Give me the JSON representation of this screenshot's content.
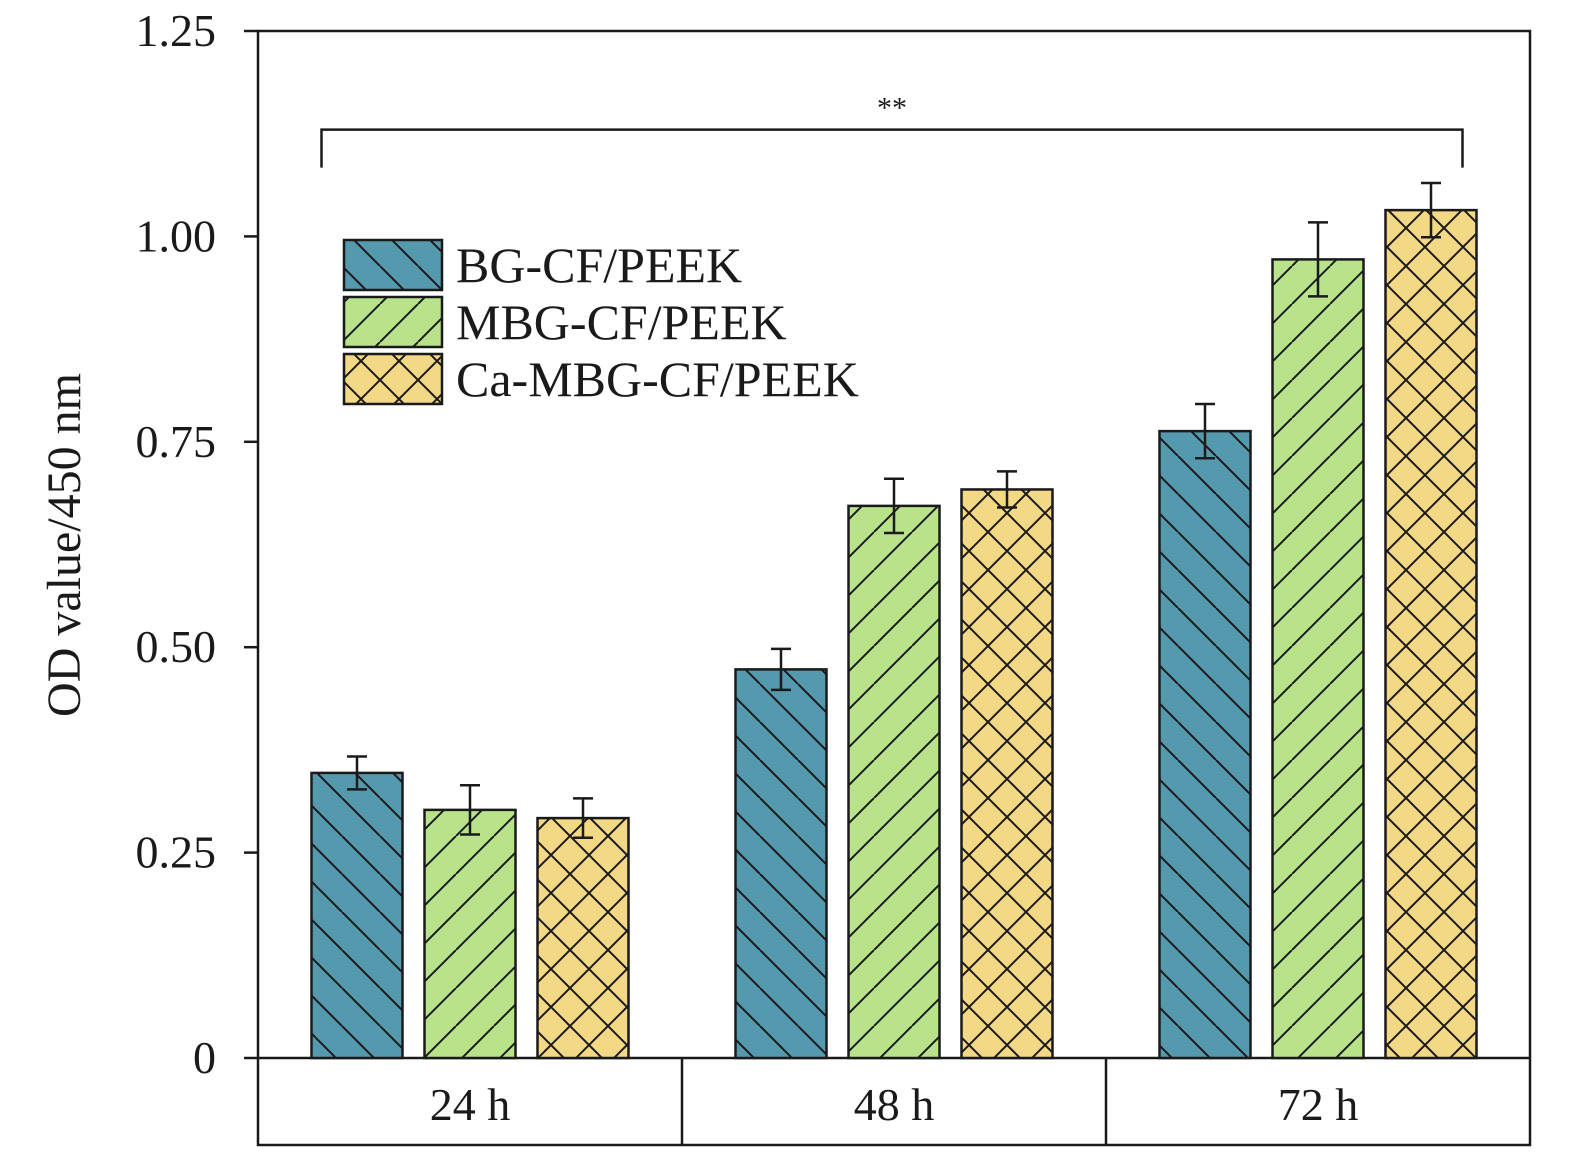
{
  "chart_data": {
    "type": "bar",
    "categories": [
      "24 h",
      "48 h",
      "72 h"
    ],
    "ylabel": "OD value/450 nm",
    "xlabel": "",
    "ylim": [
      0,
      1.25
    ],
    "yticks": [
      "0",
      "0.25",
      "0.50",
      "0.75",
      "1.00",
      "1.25"
    ],
    "ytick_values": [
      0,
      0.25,
      0.5,
      0.75,
      1.0,
      1.25
    ],
    "grid": false,
    "legend_position": "upper-left",
    "series": [
      {
        "name": "BG-CF/PEEK",
        "color": "#5499ae",
        "pattern": "back-diagonal",
        "values": [
          0.347,
          0.473,
          0.763
        ],
        "errors": [
          0.02,
          0.025,
          0.033
        ]
      },
      {
        "name": "MBG-CF/PEEK",
        "color": "#b9e38a",
        "pattern": "forward-diagonal",
        "values": [
          0.302,
          0.672,
          0.972
        ],
        "errors": [
          0.03,
          0.033,
          0.045
        ]
      },
      {
        "name": "Ca-MBG-CF/PEEK",
        "color": "#f3d985",
        "pattern": "cross-hatch",
        "values": [
          0.292,
          0.692,
          1.032
        ],
        "errors": [
          0.024,
          0.022,
          0.033
        ]
      }
    ],
    "annotations": [
      {
        "text": "**",
        "from_category": "24 h",
        "to_category": "72 h",
        "y": 1.13
      }
    ]
  }
}
